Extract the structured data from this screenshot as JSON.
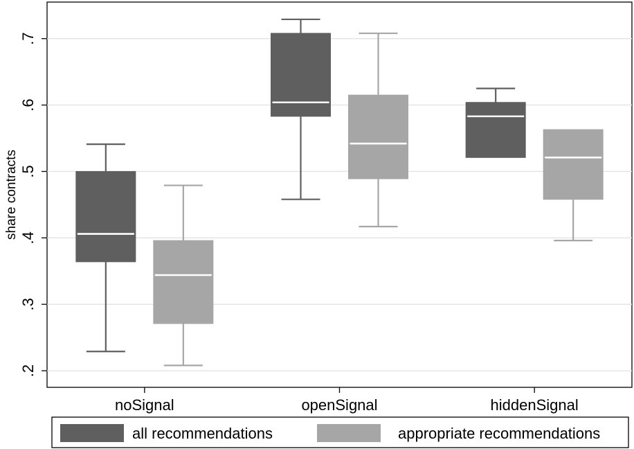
{
  "chart_data": {
    "type": "box",
    "title": "",
    "xlabel": "",
    "ylabel": "share contracts",
    "ylim": [
      0.175,
      0.755
    ],
    "yticks": [
      0.2,
      0.3,
      0.4,
      0.5,
      0.6,
      0.7
    ],
    "ytick_labels": [
      ".2",
      ".3",
      ".4",
      ".5",
      ".6",
      ".7"
    ],
    "categories": [
      "noSignal",
      "openSignal",
      "hiddenSignal"
    ],
    "grid": true,
    "legend_position": "bottom",
    "series": [
      {
        "name": "all recommendations",
        "color": "#5f5f5f",
        "boxes": [
          {
            "category": "noSignal",
            "min": 0.229,
            "q1": 0.364,
            "median": 0.406,
            "q3": 0.5,
            "max": 0.541
          },
          {
            "category": "openSignal",
            "min": 0.458,
            "q1": 0.583,
            "median": 0.604,
            "q3": 0.708,
            "max": 0.729
          },
          {
            "category": "hiddenSignal",
            "min": 0.521,
            "q1": 0.521,
            "median": 0.583,
            "q3": 0.604,
            "max": 0.625
          }
        ]
      },
      {
        "name": "appropriate recommendations",
        "color": "#a6a6a6",
        "boxes": [
          {
            "category": "noSignal",
            "min": 0.208,
            "q1": 0.271,
            "median": 0.344,
            "q3": 0.396,
            "max": 0.479
          },
          {
            "category": "openSignal",
            "min": 0.417,
            "q1": 0.489,
            "median": 0.542,
            "q3": 0.615,
            "max": 0.708
          },
          {
            "category": "hiddenSignal",
            "min": 0.396,
            "q1": 0.458,
            "median": 0.521,
            "q3": 0.563,
            "max": 0.563
          }
        ]
      }
    ]
  }
}
